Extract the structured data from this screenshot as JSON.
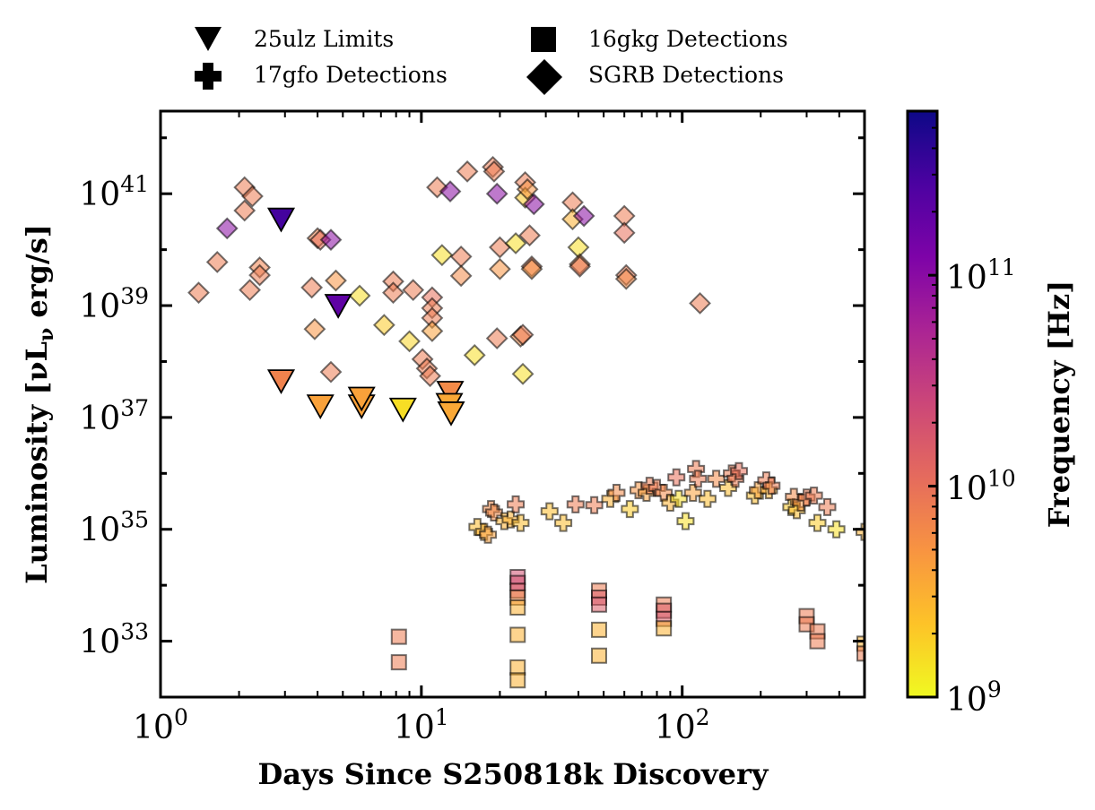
{
  "chart_data": {
    "type": "scatter",
    "title": "",
    "xlabel": "Days Since S250818k Discovery",
    "ylabel": "Luminosity [νLν erg/s]",
    "ylabel_parts": {
      "pre": "Luminosity [",
      "nu": "ν",
      "L": "L",
      "sub": "ν",
      "post": " erg/s]"
    },
    "xscale": "log",
    "yscale": "log",
    "xlim": [
      1,
      500
    ],
    "ylim": [
      1e+32,
      3e+42
    ],
    "x_ticks": [
      {
        "value": 1,
        "base": "10",
        "exp": "0"
      },
      {
        "value": 10,
        "base": "10",
        "exp": "1"
      },
      {
        "value": 100,
        "base": "10",
        "exp": "2"
      }
    ],
    "y_ticks": [
      {
        "value": 1e+33,
        "base": "10",
        "exp": "33"
      },
      {
        "value": 1e+35,
        "base": "10",
        "exp": "35"
      },
      {
        "value": 1e+37,
        "base": "10",
        "exp": "37"
      },
      {
        "value": 1e+39,
        "base": "10",
        "exp": "39"
      },
      {
        "value": 1e+41,
        "base": "10",
        "exp": "41"
      }
    ],
    "legend_placement": "top, above plot",
    "legend": [
      {
        "label": "25ulz Limits",
        "marker": "triangle-down"
      },
      {
        "label": "16gkg Detections",
        "marker": "square"
      },
      {
        "label": "17gfo Detections",
        "marker": "plus"
      },
      {
        "label": "SGRB Detections",
        "marker": "diamond"
      }
    ],
    "colorbar": {
      "label": "Frequency [Hz]",
      "colormap": "plasma",
      "scale": "log",
      "range": [
        1000000000.0,
        600000000000.0
      ],
      "ticks": [
        {
          "value": 1000000000.0,
          "base": "10",
          "exp": "9"
        },
        {
          "value": 10000000000.0,
          "base": "10",
          "exp": "10"
        },
        {
          "value": 100000000000.0,
          "base": "10",
          "exp": "11"
        }
      ]
    },
    "series": [
      {
        "name": "25ulz Limits",
        "marker": "triangle-down",
        "points": [
          [
            2.9,
            3.5e+40,
            300000000000.0
          ],
          [
            4.8,
            1e+39,
            200000000000.0
          ],
          [
            2.9,
            4.5e+37,
            7000000000.0
          ],
          [
            4.1,
            1.6e+37,
            4000000000.0
          ],
          [
            5.9,
            1.6e+37,
            4000000000.0
          ],
          [
            5.9,
            2.2e+37,
            4000000000.0
          ],
          [
            8.5,
            1.4e+37,
            1500000000.0
          ],
          [
            12.9,
            2.8e+37,
            6000000000.0
          ],
          [
            12.8,
            1.7e+37,
            3500000000.0
          ],
          [
            13.0,
            1.2e+37,
            3500000000.0
          ]
        ]
      },
      {
        "name": "SGRB Detections",
        "marker": "diamond",
        "points": [
          [
            1.4,
            1.7e+39,
            8000000000.0
          ],
          [
            1.65,
            6e+39,
            8000000000.0
          ],
          [
            1.8,
            2.4e+40,
            100000000000.0
          ],
          [
            2.1,
            1.3e+41,
            8000000000.0
          ],
          [
            2.1,
            5e+40,
            8000000000.0
          ],
          [
            2.2,
            1.9e+39,
            8000000000.0
          ],
          [
            2.25,
            9e+40,
            8000000000.0
          ],
          [
            2.4,
            4.8e+39,
            7000000000.0
          ],
          [
            2.4,
            3.5e+39,
            8000000000.0
          ],
          [
            3.8,
            2.1e+39,
            8000000000.0
          ],
          [
            3.9,
            3.8e+38,
            5000000000.0
          ],
          [
            4.0,
            1.6e+40,
            7000000000.0
          ],
          [
            4.1,
            1.5e+40,
            10000000000.0
          ],
          [
            4.5,
            1.5e+40,
            100000000000.0
          ],
          [
            4.5,
            6.5e+37,
            8000000000.0
          ],
          [
            4.7,
            2.8e+39,
            5000000000.0
          ],
          [
            5.8,
            1.5e+39,
            1500000000.0
          ],
          [
            7.2,
            4.5e+38,
            2000000000.0
          ],
          [
            7.8,
            2.7e+39,
            8000000000.0
          ],
          [
            7.8,
            1.7e+39,
            8000000000.0
          ],
          [
            9.0,
            2.3e+38,
            1700000000.0
          ],
          [
            9.3,
            1.9e+39,
            8000000000.0
          ],
          [
            10.1,
            1.1e+38,
            8000000000.0
          ],
          [
            10.5,
            7.5e+37,
            8000000000.0
          ],
          [
            10.8,
            5.5e+37,
            8000000000.0
          ],
          [
            11.0,
            1.4e+39,
            10000000000.0
          ],
          [
            11.0,
            9e+38,
            8000000000.0
          ],
          [
            11.0,
            6e+38,
            8000000000.0
          ],
          [
            11.0,
            3.5e+38,
            4000000000.0
          ],
          [
            11.5,
            1.3e+41,
            8000000000.0
          ],
          [
            12.0,
            8e+39,
            1500000000.0
          ],
          [
            12.9,
            1.1e+41,
            100000000000.0
          ],
          [
            14.2,
            7.5e+39,
            8000000000.0
          ],
          [
            14.2,
            3.4e+39,
            6000000000.0
          ],
          [
            15.0,
            2.5e+41,
            8000000000.0
          ],
          [
            16.0,
            1.3e+38,
            1500000000.0
          ],
          [
            18.8,
            3e+41,
            8000000000.0
          ],
          [
            19.0,
            2.5e+41,
            8000000000.0
          ],
          [
            19.5,
            1e+41,
            100000000000.0
          ],
          [
            19.5,
            2.6e+38,
            8000000000.0
          ],
          [
            20.0,
            1.1e+40,
            8000000000.0
          ],
          [
            20.0,
            4.5e+39,
            5000000000.0
          ],
          [
            23.0,
            1.3e+40,
            1500000000.0
          ],
          [
            24.0,
            2.8e+38,
            6000000000.0
          ],
          [
            24.5,
            3e+38,
            8000000000.0
          ],
          [
            24.5,
            6e+37,
            1500000000.0
          ],
          [
            25.0,
            1.6e+41,
            8000000000.0
          ],
          [
            25.0,
            8.5e+40,
            2000000000.0
          ],
          [
            25.5,
            1.2e+41,
            5000000000.0
          ],
          [
            26.0,
            1.8e+40,
            8000000000.0
          ],
          [
            26.5,
            5e+39,
            8000000000.0
          ],
          [
            26.5,
            4.5e+39,
            5000000000.0
          ],
          [
            27.0,
            6.5e+40,
            100000000000.0
          ],
          [
            38.0,
            7e+40,
            8000000000.0
          ],
          [
            38.0,
            3.5e+40,
            3000000000.0
          ],
          [
            40.0,
            1.1e+40,
            1500000000.0
          ],
          [
            40.5,
            5.5e+39,
            6000000000.0
          ],
          [
            40.5,
            5e+39,
            8000000000.0
          ],
          [
            42.0,
            4e+40,
            100000000000.0
          ],
          [
            60.0,
            4e+40,
            8000000000.0
          ],
          [
            60.0,
            2e+40,
            10000000000.0
          ],
          [
            61.0,
            3.5e+39,
            8000000000.0
          ],
          [
            61.0,
            3e+39,
            6000000000.0
          ],
          [
            117.0,
            1.1e+39,
            8000000000.0
          ]
        ]
      },
      {
        "name": "17gfo Detections",
        "marker": "plus",
        "points": [
          [
            16.4,
            1.1e+35,
            2500000000.0
          ],
          [
            17.4,
            9e+34,
            3000000000.0
          ],
          [
            18.0,
            8e+34,
            4000000000.0
          ],
          [
            18.5,
            2.3e+35,
            6000000000.0
          ],
          [
            19.0,
            2e+35,
            6000000000.0
          ],
          [
            20.8,
            1.4e+35,
            3000000000.0
          ],
          [
            22.0,
            1.5e+35,
            3000000000.0
          ],
          [
            23.0,
            2.8e+35,
            8000000000.0
          ],
          [
            24.0,
            1.3e+35,
            2500000000.0
          ],
          [
            31.0,
            2.1e+35,
            2500000000.0
          ],
          [
            35.0,
            1.3e+35,
            2500000000.0
          ],
          [
            39.0,
            2.8e+35,
            8000000000.0
          ],
          [
            46.0,
            2.7e+35,
            8000000000.0
          ],
          [
            53.0,
            3.5e+35,
            3000000000.0
          ],
          [
            56.0,
            4.5e+35,
            6000000000.0
          ],
          [
            63.0,
            2.3e+35,
            2000000000.0
          ],
          [
            68.0,
            5e+35,
            5000000000.0
          ],
          [
            73.0,
            4.5e+35,
            4000000000.0
          ],
          [
            75.0,
            6e+35,
            8000000000.0
          ],
          [
            80.0,
            5.5e+35,
            8000000000.0
          ],
          [
            85.0,
            4.5e+35,
            6000000000.0
          ],
          [
            90.0,
            3e+35,
            3000000000.0
          ],
          [
            95.0,
            8.5e+35,
            10000000000.0
          ],
          [
            97.0,
            3.5e+35,
            1500000000.0
          ],
          [
            103.0,
            1.4e+35,
            1500000000.0
          ],
          [
            110.0,
            4.5e+35,
            4000000000.0
          ],
          [
            113.0,
            1.2e+36,
            8000000000.0
          ],
          [
            115.0,
            8e+35,
            8000000000.0
          ],
          [
            125.0,
            3.5e+35,
            2500000000.0
          ],
          [
            135.0,
            8e+35,
            6000000000.0
          ],
          [
            150.0,
            5.5e+35,
            2500000000.0
          ],
          [
            155.0,
            1e+36,
            8000000000.0
          ],
          [
            160.0,
            8e+35,
            8000000000.0
          ],
          [
            165.0,
            1.1e+36,
            10000000000.0
          ],
          [
            190.0,
            4e+35,
            2500000000.0
          ],
          [
            195.0,
            5e+35,
            4000000000.0
          ],
          [
            210.0,
            7.5e+35,
            8000000000.0
          ],
          [
            215.0,
            5e+35,
            3000000000.0
          ],
          [
            220.0,
            6e+35,
            8000000000.0
          ],
          [
            262.0,
            2.5e+35,
            2000000000.0
          ],
          [
            268.0,
            3.8e+35,
            6000000000.0
          ],
          [
            275.0,
            2.2e+35,
            2500000000.0
          ],
          [
            285.0,
            3e+35,
            5000000000.0
          ],
          [
            300.0,
            3.7e+35,
            8000000000.0
          ],
          [
            320.0,
            4e+35,
            8000000000.0
          ],
          [
            330.0,
            1.3e+35,
            2000000000.0
          ],
          [
            360.0,
            2.5e+35,
            8000000000.0
          ],
          [
            390.0,
            1e+35,
            1500000000.0
          ],
          [
            500.0,
            9e+34,
            3000000000.0
          ]
        ]
      },
      {
        "name": "16gkg Detections",
        "marker": "square",
        "points": [
          [
            8.2,
            1.2e+33,
            8000000000.0
          ],
          [
            8.2,
            4.2e+32,
            8000000000.0
          ],
          [
            23.4,
            1.4e+34,
            20000000000.0
          ],
          [
            23.4,
            1.1e+34,
            20000000000.0
          ],
          [
            23.4,
            8e+33,
            15000000000.0
          ],
          [
            23.4,
            6e+33,
            6000000000.0
          ],
          [
            23.4,
            4e+33,
            3000000000.0
          ],
          [
            23.4,
            1.3e+33,
            3000000000.0
          ],
          [
            23.4,
            3.4e+32,
            3000000000.0
          ],
          [
            23.4,
            2e+32,
            3000000000.0
          ],
          [
            48.0,
            8e+33,
            8000000000.0
          ],
          [
            48.0,
            6e+33,
            15000000000.0
          ],
          [
            48.0,
            4.5e+33,
            15000000000.0
          ],
          [
            48.0,
            1.6e+33,
            3000000000.0
          ],
          [
            48.0,
            5.5e+32,
            3000000000.0
          ],
          [
            85.0,
            4.5e+33,
            8000000000.0
          ],
          [
            85.0,
            3.5e+33,
            15000000000.0
          ],
          [
            85.0,
            2.5e+33,
            15000000000.0
          ],
          [
            85.0,
            1.7e+33,
            3000000000.0
          ],
          [
            300.0,
            2.8e+33,
            8000000000.0
          ],
          [
            300.0,
            2e+33,
            8000000000.0
          ],
          [
            330.0,
            1.5e+33,
            8000000000.0
          ],
          [
            330.0,
            1e+33,
            8000000000.0
          ],
          [
            500.0,
            9e+32,
            3000000000.0
          ],
          [
            500.0,
            6e+32,
            8000000000.0
          ]
        ]
      }
    ]
  }
}
